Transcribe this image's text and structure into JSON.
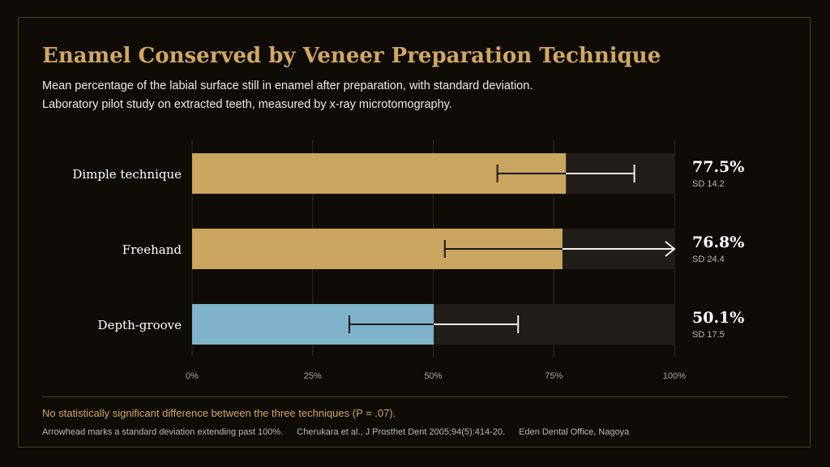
{
  "title": "Enamel Conserved by Veneer Preparation Technique",
  "subtitle_lines": [
    "Mean percentage of the labial surface still in enamel after preparation, with standard deviation.",
    "Laboratory pilot study on extracted teeth, measured by x-ray microtomography."
  ],
  "note": "No statistically significant difference between the three techniques (P = .07).",
  "footer": {
    "arrow_note": "Arrowhead marks a standard deviation extending past 100%.",
    "citation": "Cherukara et al., J Prosthet Dent 2005;94(5):414-20.",
    "credit": "Eden Dental Office, Nagoya"
  },
  "colors": {
    "background": "#0f0c08",
    "accent": "#d1a763",
    "gold_bar": "#c9a560",
    "blue_bar": "#7fb3cc",
    "track": "#211d19"
  },
  "chart_data": {
    "type": "bar",
    "orientation": "horizontal",
    "categories": [
      "Dimple technique",
      "Freehand",
      "Depth-groove"
    ],
    "values": [
      77.5,
      76.8,
      50.1
    ],
    "sd": [
      14.2,
      24.4,
      17.5
    ],
    "value_labels": [
      "77.5%",
      "76.8%",
      "50.1%"
    ],
    "sd_labels": [
      "SD 14.2",
      "SD 24.4",
      "SD 17.5"
    ],
    "bar_colors": [
      "#c9a560",
      "#c9a560",
      "#7fb3cc"
    ],
    "xlim": [
      0,
      100
    ],
    "xticks": [
      0,
      25,
      50,
      75,
      100
    ],
    "xtick_labels": [
      "0%",
      "25%",
      "50%",
      "75%",
      "100%"
    ],
    "grid": true
  }
}
